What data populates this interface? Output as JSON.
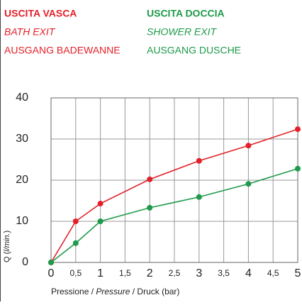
{
  "chart_data": {
    "type": "line",
    "xlabel": [
      "Pressione / ",
      "Pressure",
      " / Druck (bar)"
    ],
    "ylabel": [
      "Q (",
      "l/min.",
      ")"
    ],
    "x": [
      0,
      0.5,
      1,
      2,
      3,
      4,
      5
    ],
    "series": [
      {
        "name": "USCITA VASCA",
        "labels": [
          "BATH EXIT",
          "AUSGANG BADEWANNE"
        ],
        "color": "#e3202a",
        "values": [
          0,
          10,
          14.3,
          20.2,
          24.7,
          28.4,
          32.4
        ]
      },
      {
        "name": "USCITA DOCCIA",
        "labels": [
          "SHOWER EXIT",
          "AUSGANG DUSCHE"
        ],
        "color": "#1e9a4a",
        "values": [
          0,
          4.7,
          10,
          13.3,
          15.9,
          19.1,
          22.8
        ]
      }
    ],
    "xlim": [
      0,
      5
    ],
    "xticks": [
      0,
      {
        "value": 0.5,
        "label": "0,5"
      },
      1,
      {
        "value": 1.5,
        "label": "1,5"
      },
      2,
      {
        "value": 2.5,
        "label": "2,5"
      },
      3,
      {
        "value": 3.5,
        "label": "3,5"
      },
      4,
      {
        "value": 4.5,
        "label": "4,5"
      },
      5
    ],
    "ylim": [
      0,
      40
    ],
    "yticks": [
      0,
      10,
      20,
      30,
      40
    ],
    "grid": true
  }
}
